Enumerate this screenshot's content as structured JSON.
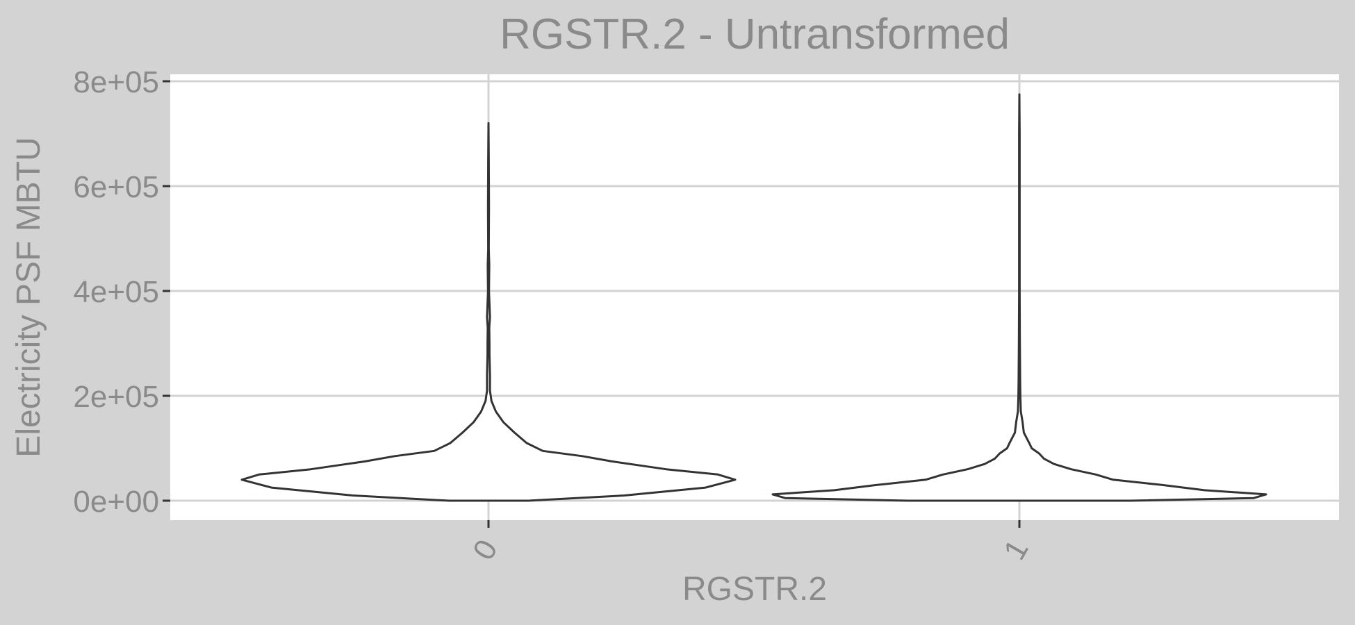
{
  "chart_data": {
    "type": "violin",
    "title": "RGSTR.2 - Untransformed",
    "xlabel": "RGSTR.2",
    "ylabel": "Electricity PSF MBTU",
    "categories": [
      "0",
      "1"
    ],
    "ylim": [
      -40000,
      800000
    ],
    "yticks": [
      0,
      200000,
      400000,
      600000,
      800000
    ],
    "ytick_labels": [
      "0e+00",
      "2e+05",
      "4e+05",
      "6e+05",
      "8e+05"
    ],
    "grid": true,
    "legend": "none",
    "colors": {
      "panel": "#ffffff",
      "background": "#d3d3d3",
      "grid": "#d3d3d3",
      "outline": "#333333",
      "text": "#8a8a8a"
    },
    "violins": [
      {
        "category": "0",
        "y_min": 0,
        "y_max": 720000,
        "density_profile": [
          [
            0,
            0.16
          ],
          [
            10000,
            0.55
          ],
          [
            25000,
            0.88
          ],
          [
            40000,
            1.0
          ],
          [
            50000,
            0.93
          ],
          [
            60000,
            0.72
          ],
          [
            75000,
            0.5
          ],
          [
            85000,
            0.38
          ],
          [
            95000,
            0.22
          ],
          [
            110000,
            0.155
          ],
          [
            130000,
            0.105
          ],
          [
            150000,
            0.06
          ],
          [
            170000,
            0.03
          ],
          [
            190000,
            0.012
          ],
          [
            210000,
            0.006
          ],
          [
            240000,
            0.006
          ],
          [
            280000,
            0.004
          ],
          [
            300000,
            0.004
          ],
          [
            330000,
            0.003
          ],
          [
            350000,
            0.006
          ],
          [
            400000,
            0.002
          ],
          [
            450000,
            0.003
          ],
          [
            480000,
            0.001
          ],
          [
            560000,
            0.002
          ],
          [
            650000,
            0.001
          ],
          [
            720000,
            0.0
          ]
        ]
      },
      {
        "category": "1",
        "y_min": 0,
        "y_max": 775000,
        "density_profile": [
          [
            0,
            0.45
          ],
          [
            5000,
            0.95
          ],
          [
            12000,
            1.0
          ],
          [
            20000,
            0.75
          ],
          [
            30000,
            0.58
          ],
          [
            40000,
            0.38
          ],
          [
            50000,
            0.31
          ],
          [
            60000,
            0.21
          ],
          [
            70000,
            0.14
          ],
          [
            80000,
            0.1
          ],
          [
            90000,
            0.08
          ],
          [
            100000,
            0.05
          ],
          [
            110000,
            0.04
          ],
          [
            130000,
            0.018
          ],
          [
            150000,
            0.013
          ],
          [
            170000,
            0.006
          ],
          [
            200000,
            0.004
          ],
          [
            230000,
            0.003
          ],
          [
            300000,
            0.002
          ],
          [
            400000,
            0.001
          ],
          [
            500000,
            0.001
          ],
          [
            700000,
            0.001
          ],
          [
            775000,
            0.0
          ]
        ]
      }
    ]
  }
}
